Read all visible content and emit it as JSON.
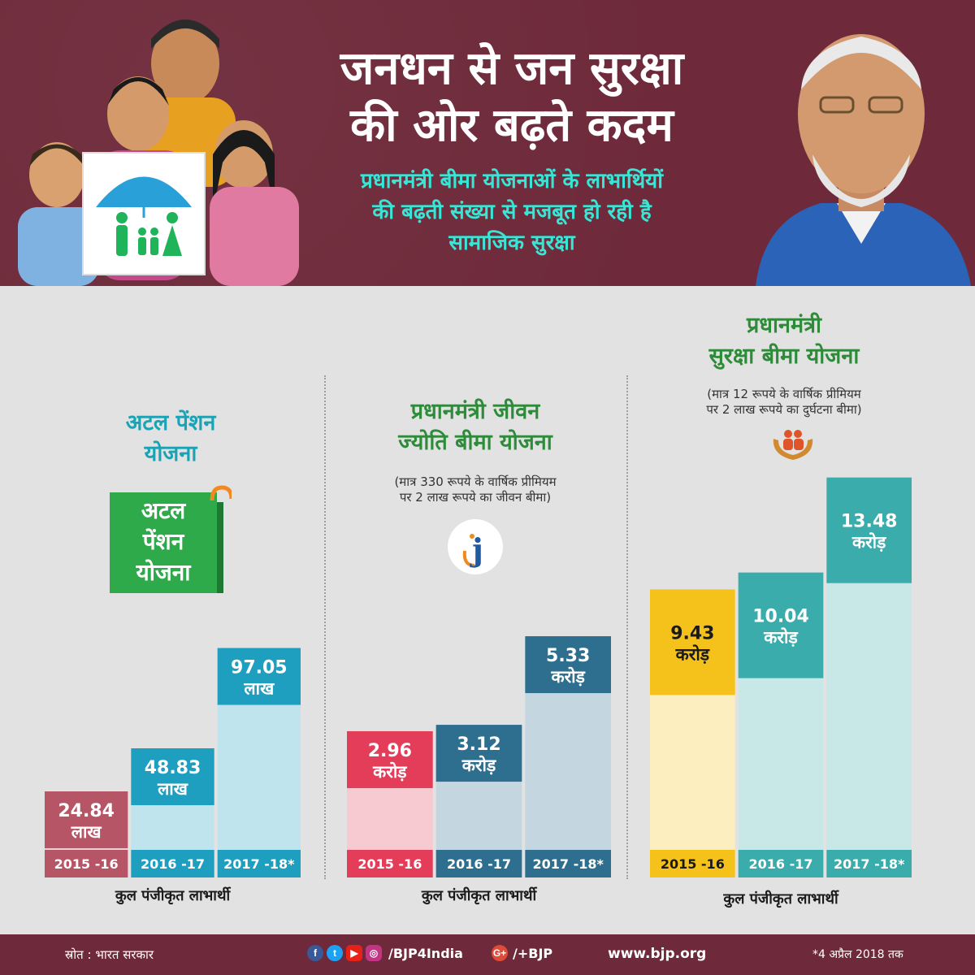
{
  "header": {
    "title_lines": [
      "जनधन से जन सुरक्षा",
      "की ओर बढ़ते कदम"
    ],
    "subtitle_lines": [
      "प्रधानमंत्री बीमा योजनाओं के लाभार्थियों",
      "की बढ़ती संख्या से मजबूत हो रही है",
      "सामाजिक सुरक्षा"
    ]
  },
  "colors": {
    "header_bg": "#6e2a3a",
    "subtitle": "#39e6d6",
    "apy_title": "#1aa3b5",
    "green_title": "#2e8b3a",
    "apy": {
      "2015-16": "#b55565",
      "2016-17": "#1f9fc0",
      "2017-18": "#1f9fc0"
    },
    "pmjjby": {
      "2015-16": "#e33d5a",
      "2016-17": "#2e6f8f",
      "2017-18": "#2e6f8f"
    },
    "pmsby": {
      "2015-16": "#f5c21b",
      "2016-17": "#3aacac",
      "2017-18": "#3aacac"
    }
  },
  "apy_logo": {
    "lines": [
      "अटल",
      "पेंशन",
      "योजना"
    ]
  },
  "jj_logo": {
    "letter": "j"
  },
  "chart_data": [
    {
      "type": "bar",
      "title_lines": [
        "अटल पेंशन",
        "योजना"
      ],
      "note_lines": [],
      "categories": [
        "2015 -16",
        "2016 -17",
        "2017 -18*"
      ],
      "values": [
        24.84,
        48.83,
        97.05
      ],
      "unit": "लाख",
      "value_labels": [
        "24.84",
        "48.83",
        "97.05"
      ],
      "xlabel": "कुल पंजीकृत लाभार्थी",
      "ylim": [
        0,
        100
      ]
    },
    {
      "type": "bar",
      "title_lines": [
        "प्रधानमंत्री जीवन",
        "ज्योति बीमा योजना"
      ],
      "note_lines": [
        "(मात्र 330 रूपये के वार्षिक प्रीमियम",
        "पर 2 लाख रूपये का जीवन बीमा)"
      ],
      "categories": [
        "2015 -16",
        "2016 -17",
        "2017 -18*"
      ],
      "values": [
        2.96,
        3.12,
        5.33
      ],
      "unit": "करोड़",
      "value_labels": [
        "2.96",
        "3.12",
        "5.33"
      ],
      "xlabel": "कुल पंजीकृत लाभार्थी",
      "ylim": [
        0,
        6
      ]
    },
    {
      "type": "bar",
      "title_lines": [
        "प्रधानमंत्री",
        "सुरक्षा बीमा योजना"
      ],
      "note_lines": [
        "(मात्र 12 रूपये के वार्षिक प्रीमियम",
        "पर 2 लाख रूपये का दुर्घटना बीमा)"
      ],
      "categories": [
        "2015 -16",
        "2016 -17",
        "2017 -18*"
      ],
      "values": [
        9.43,
        10.04,
        13.48
      ],
      "unit": "करोड़",
      "value_labels": [
        "9.43",
        "10.04",
        "13.48"
      ],
      "xlabel": "कुल पंजीकृत लाभार्थी",
      "ylim": [
        0,
        14
      ]
    }
  ],
  "footer": {
    "source": "स्रोत : भारत सरकार",
    "handle": "/BJP4India",
    "gplus_handle": "/+BJP",
    "website": "www.bjp.org",
    "as_of": "*4 अप्रैल 2018 तक"
  }
}
